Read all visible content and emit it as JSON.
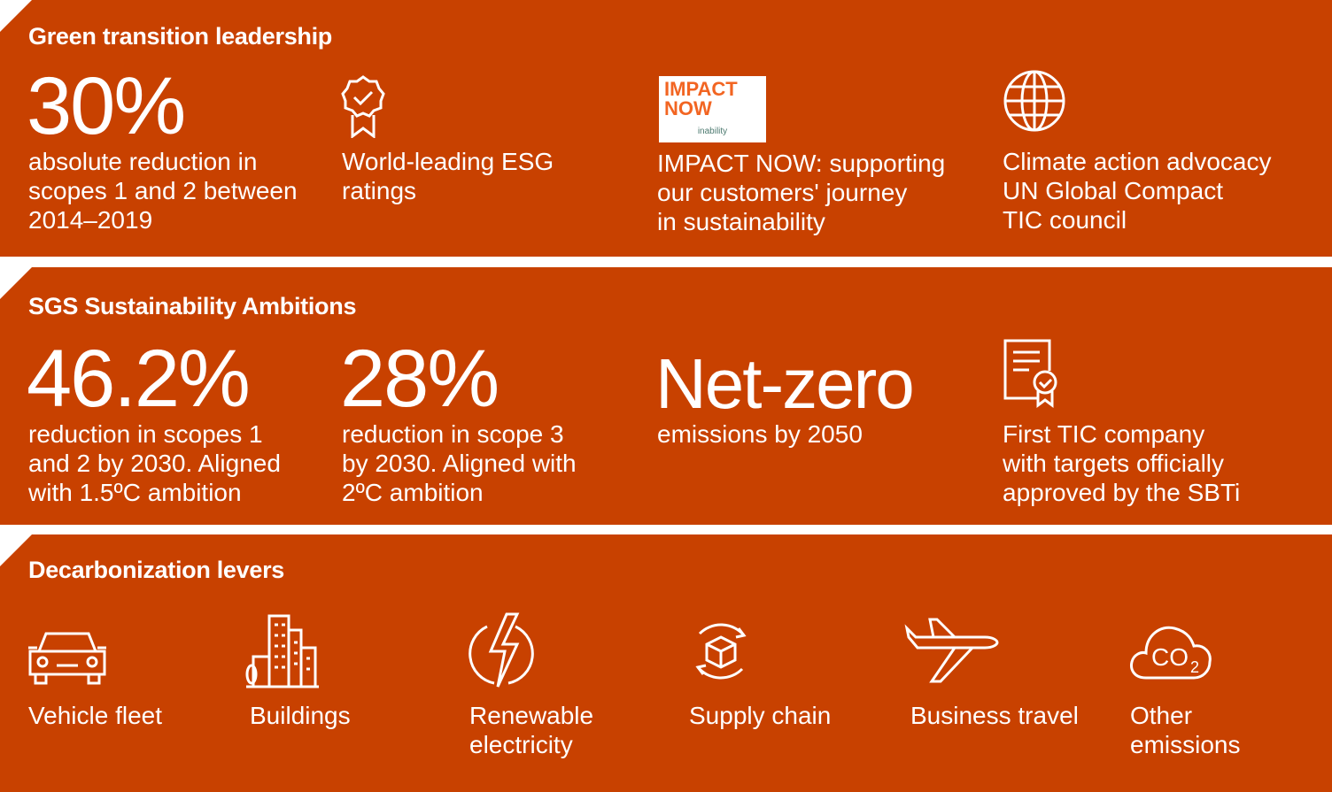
{
  "colors": {
    "background": "#c84100",
    "text": "#ffffff"
  },
  "sections": [
    {
      "title": "Green transition leadership",
      "items": [
        {
          "big": "30%",
          "text": [
            "absolute reduction in",
            "scopes 1 and 2 between",
            "2014–2019"
          ]
        },
        {
          "icon": "award-badge-icon",
          "text": [
            "World-leading ESG",
            "ratings"
          ]
        },
        {
          "logo": {
            "line1": "IMPACT",
            "line2": "NOW",
            "sub": "inability"
          },
          "text": [
            "IMPACT NOW: supporting",
            "our customers' journey",
            "in sustainability"
          ]
        },
        {
          "icon": "globe-icon",
          "text": [
            "Climate action advocacy",
            "UN Global Compact",
            "TIC council"
          ]
        }
      ]
    },
    {
      "title": "SGS Sustainability Ambitions",
      "items": [
        {
          "big": "46.2%",
          "text": [
            "reduction in scopes 1",
            "and 2 by 2030. Aligned",
            "with 1.5ºC ambition"
          ]
        },
        {
          "big": "28%",
          "text": [
            "reduction in scope 3",
            "by 2030. Aligned with",
            "2ºC ambition"
          ]
        },
        {
          "big": "Net-zero",
          "text": [
            "emissions by 2050"
          ]
        },
        {
          "icon": "certificate-icon",
          "text": [
            "First TIC company",
            "with targets officially",
            "approved by the SBTi"
          ]
        }
      ]
    },
    {
      "title": "Decarbonization levers",
      "items": [
        {
          "icon": "car-icon",
          "text": [
            "Vehicle fleet"
          ]
        },
        {
          "icon": "buildings-icon",
          "text": [
            "Buildings"
          ]
        },
        {
          "icon": "lightning-icon",
          "text": [
            "Renewable",
            "electricity"
          ]
        },
        {
          "icon": "supply-chain-icon",
          "text": [
            "Supply chain"
          ]
        },
        {
          "icon": "airplane-icon",
          "text": [
            "Business travel"
          ]
        },
        {
          "icon": "co2-cloud-icon",
          "text": [
            "Other",
            "emissions"
          ]
        }
      ]
    }
  ]
}
